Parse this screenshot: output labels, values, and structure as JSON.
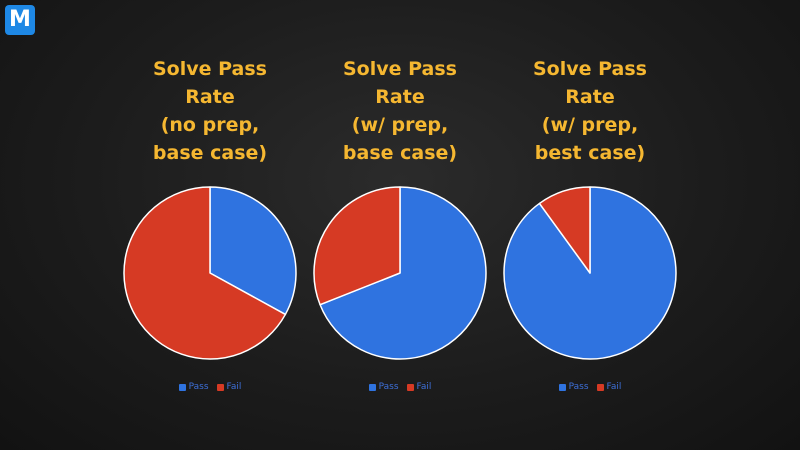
{
  "logo": {
    "letter": "M",
    "color": "#1e88e5"
  },
  "colors": {
    "pass": "#2f73e0",
    "fail": "#d63a24",
    "title": "#f5b731"
  },
  "chart_data": [
    {
      "type": "pie",
      "title_lines": [
        "Solve Pass",
        "Rate",
        "(no prep,",
        "base case)"
      ],
      "categories": [
        "Pass",
        "Fail"
      ],
      "values": [
        33,
        67
      ]
    },
    {
      "type": "pie",
      "title_lines": [
        "Solve Pass",
        "Rate",
        "(w/ prep,",
        "base case)"
      ],
      "categories": [
        "Pass",
        "Fail"
      ],
      "values": [
        69,
        31
      ]
    },
    {
      "type": "pie",
      "title_lines": [
        "Solve Pass",
        "Rate",
        "(w/ prep,",
        "best case)"
      ],
      "categories": [
        "Pass",
        "Fail"
      ],
      "values": [
        90,
        10
      ]
    }
  ]
}
